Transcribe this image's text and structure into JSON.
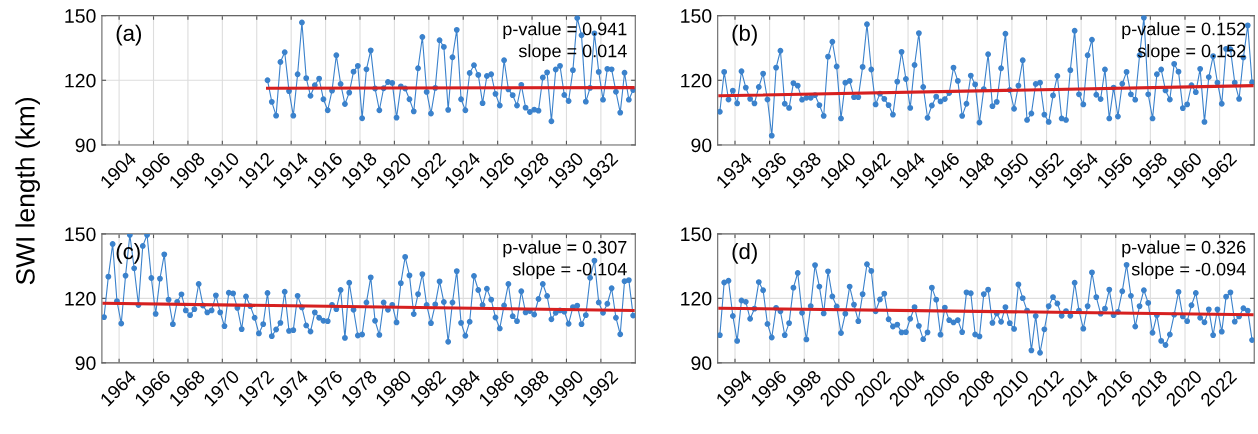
{
  "chart_data": [
    {
      "type": "line",
      "ylabel": "SWI length (km)",
      "annotations": [
        "(a)",
        "p-value = 0.941",
        "slope = 0.014"
      ],
      "xlim": [
        1903,
        1934
      ],
      "xticks": [
        1904,
        1906,
        1908,
        1910,
        1912,
        1914,
        1916,
        1918,
        1920,
        1922,
        1924,
        1926,
        1928,
        1930,
        1932
      ],
      "ylim": [
        90,
        150
      ],
      "yticks": [
        90,
        120,
        150
      ],
      "grid": true,
      "marker": "circle",
      "line_style": "solid",
      "series": [
        {
          "color": "#3b82cc",
          "x": [
            1912.625,
            1912.875,
            1913.125,
            1913.375,
            1913.625,
            1913.875,
            1914.125,
            1914.375,
            1914.625,
            1914.875,
            1915.125,
            1915.375,
            1915.625,
            1915.875,
            1916.125,
            1916.375,
            1916.625,
            1916.875,
            1917.125,
            1917.375,
            1917.625,
            1917.875,
            1918.125,
            1918.375,
            1918.625,
            1918.875,
            1919.125,
            1919.375,
            1919.625,
            1919.875,
            1920.125,
            1920.375,
            1920.625,
            1920.875,
            1921.125,
            1921.375,
            1921.625,
            1921.875,
            1922.125,
            1922.375,
            1922.625,
            1922.875,
            1923.125,
            1923.375,
            1923.625,
            1923.875,
            1924.125,
            1924.375,
            1924.625,
            1924.875,
            1925.125,
            1925.375,
            1925.625,
            1925.875,
            1926.125,
            1926.375,
            1926.625,
            1926.875,
            1927.125,
            1927.375,
            1927.625,
            1927.875,
            1928.125,
            1928.375,
            1928.625,
            1928.875,
            1929.125,
            1929.375,
            1929.625,
            1929.875,
            1930.125,
            1930.375,
            1930.625,
            1930.875,
            1931.125,
            1931.375,
            1931.625,
            1931.875,
            1932.125,
            1932.375,
            1932.625,
            1932.875,
            1933.125,
            1933.375,
            1933.625,
            1933.875
          ],
          "values": [
            120,
            110,
            103.6,
            128.5,
            133,
            115,
            103.6,
            122.8,
            146.8,
            121,
            112.8,
            117.7,
            120.8,
            111.2,
            106.1,
            115.2,
            131.6,
            118.3,
            109,
            114.3,
            124,
            126.7,
            102.4,
            125.1,
            133.9,
            116.2,
            106.1,
            116.3,
            119.2,
            118.8,
            102.7,
            117.2,
            116.2,
            111.2,
            105.6,
            125.6,
            140.1,
            114.6,
            104.6,
            116.5,
            138.6,
            135.5,
            106.3,
            130.7,
            143.4,
            111.2,
            106.1,
            123.4,
            127,
            122.5,
            109.4,
            122,
            122.8,
            113.7,
            108.3,
            129.3,
            115.8,
            113.1,
            108.3,
            117.9,
            107.3,
            105.3,
            106.4,
            105.9,
            121.3,
            123.7,
            101,
            125,
            126.7,
            113.2,
            110.4,
            124.7,
            148.9,
            140.9,
            110.1,
            116.5,
            141.8,
            123.9,
            111,
            125.3,
            125.1,
            114.7,
            105,
            123.5,
            111,
            115.5
          ]
        },
        {
          "type": "line",
          "marker": "none",
          "color": "#d62020",
          "x": [
            1912.625,
            1933.875
          ],
          "values": [
            116.3,
            116.6
          ]
        }
      ]
    },
    {
      "type": "line",
      "annotations": [
        "(b)",
        "p-value = 0.152",
        "slope = 0.152"
      ],
      "xlim": [
        1933,
        1964
      ],
      "xticks": [
        1934,
        1936,
        1938,
        1940,
        1942,
        1944,
        1946,
        1948,
        1950,
        1952,
        1954,
        1956,
        1958,
        1960,
        1962
      ],
      "ylim": [
        90,
        150
      ],
      "yticks": [
        90,
        120,
        150
      ],
      "grid": true,
      "marker": "circle",
      "line_style": "solid",
      "series": [
        {
          "color": "#3b82cc",
          "x": [
            1933.125,
            1933.375,
            1933.625,
            1933.875,
            1934.125,
            1934.375,
            1934.625,
            1934.875,
            1935.125,
            1935.375,
            1935.625,
            1935.875,
            1936.125,
            1936.375,
            1936.625,
            1936.875,
            1937.125,
            1937.375,
            1937.625,
            1937.875,
            1938.125,
            1938.375,
            1938.625,
            1938.875,
            1939.125,
            1939.375,
            1939.625,
            1939.875,
            1940.125,
            1940.375,
            1940.625,
            1940.875,
            1941.125,
            1941.375,
            1941.625,
            1941.875,
            1942.125,
            1942.375,
            1942.625,
            1942.875,
            1943.125,
            1943.375,
            1943.625,
            1943.875,
            1944.125,
            1944.375,
            1944.625,
            1944.875,
            1945.125,
            1945.375,
            1945.625,
            1945.875,
            1946.125,
            1946.375,
            1946.625,
            1946.875,
            1947.125,
            1947.375,
            1947.625,
            1947.875,
            1948.125,
            1948.375,
            1948.625,
            1948.875,
            1949.125,
            1949.375,
            1949.625,
            1949.875,
            1950.125,
            1950.375,
            1950.625,
            1950.875,
            1951.125,
            1951.375,
            1951.625,
            1951.875,
            1952.125,
            1952.375,
            1952.625,
            1952.875,
            1953.125,
            1953.375,
            1953.625,
            1953.875,
            1954.125,
            1954.375,
            1954.625,
            1954.875,
            1955.125,
            1955.375,
            1955.625,
            1955.875,
            1956.125,
            1956.375,
            1956.625,
            1956.875,
            1957.125,
            1957.375,
            1957.625,
            1957.875,
            1958.125,
            1958.375,
            1958.625,
            1958.875,
            1959.125,
            1959.375,
            1959.625,
            1959.875,
            1960.125,
            1960.375,
            1960.625,
            1960.875,
            1961.125,
            1961.375,
            1961.625,
            1961.875,
            1962.125,
            1962.375,
            1962.625,
            1962.875,
            1963.125,
            1963.375,
            1963.625,
            1963.875
          ],
          "values": [
            105.4,
            123.9,
            111.1,
            115.2,
            109.3,
            124.2,
            116.6,
            111.4,
            109.3,
            116.9,
            123.1,
            111.1,
            94.3,
            125.9,
            133.7,
            109.1,
            107.2,
            118.7,
            117.5,
            111,
            111.9,
            111.9,
            113.1,
            108.5,
            103.5,
            131,
            137.9,
            126.4,
            102.3,
            118.9,
            119.7,
            112.2,
            112.2,
            126.2,
            146,
            125,
            108.8,
            113.8,
            111.4,
            108.5,
            104.1,
            119.4,
            133.2,
            120.6,
            107.2,
            127.1,
            141.9,
            116.9,
            102.6,
            108.3,
            112.4,
            110.2,
            111.3,
            114.1,
            125.9,
            119.7,
            103.5,
            109.1,
            122.2,
            118.1,
            100.4,
            115.9,
            132.1,
            108,
            110,
            125.6,
            141.6,
            115.5,
            106.8,
            117.5,
            129.3,
            101.6,
            104.6,
            118.3,
            118.9,
            104.1,
            100.7,
            113,
            122,
            102.3,
            101.6,
            124.7,
            143,
            113.5,
            108.8,
            131.6,
            138.8,
            113.3,
            111.3,
            125,
            102.3,
            116.6,
            103.2,
            118.4,
            123.9,
            113.5,
            111,
            131.6,
            149.1,
            113.5,
            102.3,
            122.8,
            125,
            115.3,
            111.1,
            127.6,
            124,
            107.1,
            108.8,
            117.7,
            114.5,
            125.3,
            100.7,
            121.5,
            131.2,
            118.9,
            109.1,
            134.6,
            134.4,
            118.9,
            111.4,
            130.6,
            145.5,
            119
          ]
        },
        {
          "type": "line",
          "marker": "none",
          "color": "#d62020",
          "x": [
            1933.125,
            1963.875
          ],
          "values": [
            112.8,
            117.5
          ]
        }
      ]
    },
    {
      "type": "line",
      "annotations": [
        "(c)",
        "p-value = 0.307",
        "slope = -0.104"
      ],
      "xlim": [
        1963,
        1994
      ],
      "xticks": [
        1964,
        1966,
        1968,
        1970,
        1972,
        1974,
        1976,
        1978,
        1980,
        1982,
        1984,
        1986,
        1988,
        1990,
        1992
      ],
      "ylim": [
        90,
        150
      ],
      "yticks": [
        90,
        120,
        150
      ],
      "grid": true,
      "marker": "circle",
      "line_style": "solid",
      "series": [
        {
          "color": "#3b82cc",
          "x": [
            1963.125,
            1963.375,
            1963.625,
            1963.875,
            1964.125,
            1964.375,
            1964.625,
            1964.875,
            1965.125,
            1965.375,
            1965.625,
            1965.875,
            1966.125,
            1966.375,
            1966.625,
            1966.875,
            1967.125,
            1967.375,
            1967.625,
            1967.875,
            1968.125,
            1968.375,
            1968.625,
            1968.875,
            1969.125,
            1969.375,
            1969.625,
            1969.875,
            1970.125,
            1970.375,
            1970.625,
            1970.875,
            1971.125,
            1971.375,
            1971.625,
            1971.875,
            1972.125,
            1972.375,
            1972.625,
            1972.875,
            1973.125,
            1973.375,
            1973.625,
            1973.875,
            1974.125,
            1974.375,
            1974.625,
            1974.875,
            1975.125,
            1975.375,
            1975.625,
            1975.875,
            1976.125,
            1976.375,
            1976.625,
            1976.875,
            1977.125,
            1977.375,
            1977.625,
            1977.875,
            1978.125,
            1978.375,
            1978.625,
            1978.875,
            1979.125,
            1979.375,
            1979.625,
            1979.875,
            1980.125,
            1980.375,
            1980.625,
            1980.875,
            1981.125,
            1981.375,
            1981.625,
            1981.875,
            1982.125,
            1982.375,
            1982.625,
            1982.875,
            1983.125,
            1983.375,
            1983.625,
            1983.875,
            1984.125,
            1984.375,
            1984.625,
            1984.875,
            1985.125,
            1985.375,
            1985.625,
            1985.875,
            1986.125,
            1986.375,
            1986.625,
            1986.875,
            1987.125,
            1987.375,
            1987.625,
            1987.875,
            1988.125,
            1988.375,
            1988.625,
            1988.875,
            1989.125,
            1989.375,
            1989.625,
            1989.875,
            1990.125,
            1990.375,
            1990.625,
            1990.875,
            1991.125,
            1991.375,
            1991.625,
            1991.875,
            1992.125,
            1992.375,
            1992.625,
            1992.875,
            1993.125,
            1993.375,
            1993.625,
            1993.875
          ],
          "values": [
            111.3,
            130.1,
            145.3,
            118.7,
            108.3,
            130.6,
            149.5,
            134,
            116.9,
            144.4,
            149.5,
            129.5,
            112.8,
            129.2,
            140.5,
            119.4,
            108,
            118.4,
            121.9,
            114.4,
            112.2,
            115,
            126.7,
            116.7,
            113.5,
            114.4,
            121.4,
            113.5,
            107.1,
            122.6,
            122.3,
            115.6,
            105.7,
            120.9,
            116.4,
            111,
            103.7,
            108,
            122.5,
            102.4,
            105.5,
            108.6,
            123.1,
            104.9,
            105.2,
            121.2,
            115.8,
            107.4,
            104.6,
            113.5,
            111,
            109.6,
            109.4,
            117,
            115,
            123.9,
            101.6,
            127.3,
            114.7,
            102.7,
            103.2,
            118.1,
            129.8,
            109.6,
            103,
            118.1,
            114.7,
            117,
            108.8,
            127.1,
            139.3,
            130.7,
            112.7,
            122,
            131.3,
            116.9,
            108.5,
            117.2,
            127.9,
            118.3,
            99.8,
            118.1,
            132.7,
            108.6,
            102.6,
            109.1,
            130.4,
            123.9,
            116.9,
            124.5,
            119.4,
            111.1,
            106,
            116.7,
            126.7,
            111.7,
            109.4,
            123.3,
            113.5,
            114.1,
            112.5,
            119.7,
            126.7,
            121.1,
            110.3,
            113.3,
            114.4,
            113.8,
            108.2,
            115.9,
            116.6,
            108,
            112.2,
            129.6,
            137.6,
            118.1,
            113.3,
            117.5,
            124.7,
            111,
            103.3,
            128,
            128.5,
            112
          ]
        },
        {
          "type": "line",
          "marker": "none",
          "color": "#d62020",
          "x": [
            1963.125,
            1993.875
          ],
          "values": [
            117.7,
            114.4
          ]
        }
      ]
    },
    {
      "type": "line",
      "annotations": [
        "(d)",
        "p-value = 0.326",
        "slope = -0.094"
      ],
      "xlim": [
        1993,
        2024
      ],
      "xticks": [
        1994,
        1996,
        1998,
        2000,
        2002,
        2004,
        2006,
        2008,
        2010,
        2012,
        2014,
        2016,
        2018,
        2020,
        2022
      ],
      "ylim": [
        90,
        150
      ],
      "yticks": [
        90,
        120,
        150
      ],
      "grid": true,
      "marker": "circle",
      "line_style": "solid",
      "series": [
        {
          "color": "#3b82cc",
          "x": [
            1993.125,
            1993.375,
            1993.625,
            1993.875,
            1994.125,
            1994.375,
            1994.625,
            1994.875,
            1995.125,
            1995.375,
            1995.625,
            1995.875,
            1996.125,
            1996.375,
            1996.625,
            1996.875,
            1997.125,
            1997.375,
            1997.625,
            1997.875,
            1998.125,
            1998.375,
            1998.625,
            1998.875,
            1999.125,
            1999.375,
            1999.625,
            1999.875,
            2000.125,
            2000.375,
            2000.625,
            2000.875,
            2001.125,
            2001.375,
            2001.625,
            2001.875,
            2002.125,
            2002.375,
            2002.625,
            2002.875,
            2003.125,
            2003.375,
            2003.625,
            2003.875,
            2004.125,
            2004.375,
            2004.625,
            2004.875,
            2005.125,
            2005.375,
            2005.625,
            2005.875,
            2006.125,
            2006.375,
            2006.625,
            2006.875,
            2007.125,
            2007.375,
            2007.625,
            2007.875,
            2008.125,
            2008.375,
            2008.625,
            2008.875,
            2009.125,
            2009.375,
            2009.625,
            2009.875,
            2010.125,
            2010.375,
            2010.625,
            2010.875,
            2011.125,
            2011.375,
            2011.625,
            2011.875,
            2012.125,
            2012.375,
            2012.625,
            2012.875,
            2013.125,
            2013.375,
            2013.625,
            2013.875,
            2014.125,
            2014.375,
            2014.625,
            2014.875,
            2015.125,
            2015.375,
            2015.625,
            2015.875,
            2016.125,
            2016.375,
            2016.625,
            2016.875,
            2017.125,
            2017.375,
            2017.625,
            2017.875,
            2018.125,
            2018.375,
            2018.625,
            2018.875,
            2019.125,
            2019.375,
            2019.625,
            2019.875,
            2020.125,
            2020.375,
            2020.625,
            2020.875,
            2021.125,
            2021.375,
            2021.625,
            2021.875,
            2022.125,
            2022.375,
            2022.625,
            2022.875,
            2023.125,
            2023.375,
            2023.625,
            2023.875
          ],
          "values": [
            102.9,
            127.4,
            128.2,
            111.8,
            100.2,
            119,
            118.4,
            110.5,
            115.2,
            127.6,
            123.8,
            108.1,
            101.8,
            115.6,
            114,
            102.9,
            108.5,
            125,
            131.8,
            113.3,
            100.9,
            116.4,
            135.5,
            125.5,
            113,
            132.6,
            120.9,
            116.2,
            103.9,
            112.9,
            125.5,
            117.1,
            109.4,
            122,
            135.9,
            132.8,
            114,
            119.5,
            122.2,
            110.3,
            106.9,
            107.8,
            104.2,
            104.3,
            110.5,
            115.9,
            107.2,
            101,
            104.2,
            125,
            119.4,
            103.1,
            115.7,
            109.9,
            108.8,
            109.9,
            104.3,
            122.8,
            122.4,
            103.2,
            102.3,
            122,
            124.1,
            108.6,
            113,
            109.1,
            115.9,
            108.5,
            105.8,
            126.5,
            120.1,
            114.3,
            95.8,
            111.8,
            94.7,
            105.6,
            116.4,
            120.6,
            117.6,
            111.9,
            114.1,
            111.9,
            127.3,
            114.3,
            105.9,
            116.4,
            132.1,
            120.6,
            112.9,
            115.2,
            124.1,
            112.2,
            113.7,
            123.3,
            135.6,
            121.2,
            106.9,
            116.4,
            123.8,
            117.9,
            104,
            112.2,
            100.2,
            98.3,
            103.2,
            112.4,
            123,
            111.6,
            109.4,
            116.8,
            122.5,
            111,
            108.9,
            114.9,
            102.9,
            114.9,
            104.5,
            120.8,
            122.8,
            109.2,
            111.6,
            115.4,
            114.3,
            100.6
          ]
        },
        {
          "type": "line",
          "marker": "none",
          "color": "#d62020",
          "x": [
            1993.125,
            2023.875
          ],
          "values": [
            115.4,
            112.4
          ]
        }
      ]
    }
  ]
}
